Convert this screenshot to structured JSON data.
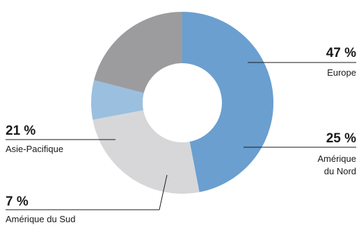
{
  "chart_data": {
    "type": "pie",
    "donut": true,
    "slices": [
      {
        "label": "Europe",
        "value": 47,
        "value_label": "47 %",
        "color": "#6a9fcf"
      },
      {
        "label": "Amérique du Nord",
        "label_lines": [
          "Amérique",
          "du Nord"
        ],
        "value": 25,
        "value_label": "25 %",
        "color": "#d7d7d9"
      },
      {
        "label": "Amérique du Sud",
        "value": 7,
        "value_label": "7 %",
        "color": "#9bbfdf"
      },
      {
        "label": "Asie-Pacifique",
        "value": 21,
        "value_label": "21 %",
        "color": "#9c9c9e"
      }
    ]
  }
}
